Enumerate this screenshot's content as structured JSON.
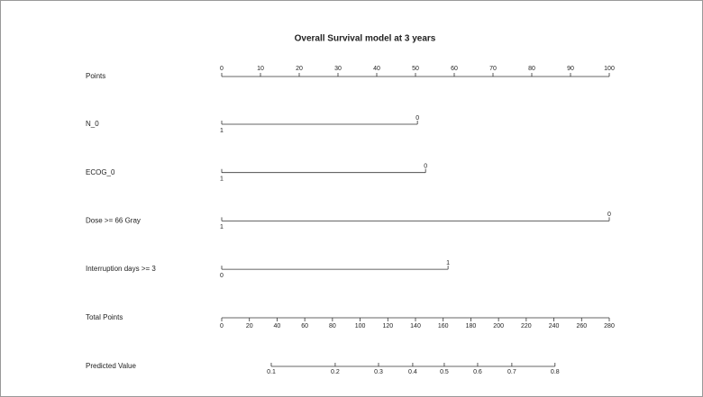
{
  "chart_data": {
    "type": "nomogram",
    "title": "Overall Survival model at 3 years",
    "points_scale": {
      "label": "Points",
      "xlim": [
        0,
        100
      ],
      "xticks": [
        0,
        10,
        20,
        30,
        40,
        50,
        60,
        70,
        80,
        90,
        100
      ]
    },
    "variables": [
      {
        "name": "N_0",
        "levels": [
          {
            "label": "1",
            "points": 0
          },
          {
            "label": "0",
            "points": 50.5
          }
        ]
      },
      {
        "name": "ECOG_0",
        "levels": [
          {
            "label": "1",
            "points": 0
          },
          {
            "label": "0",
            "points": 52.6
          }
        ]
      },
      {
        "name": "Dose >= 66 Gray",
        "levels": [
          {
            "label": "1",
            "points": 0
          },
          {
            "label": "0",
            "points": 100
          }
        ]
      },
      {
        "name": "Interruption days >= 3",
        "levels": [
          {
            "label": "0",
            "points": 0
          },
          {
            "label": "1",
            "points": 58.4
          }
        ]
      }
    ],
    "total_points_scale": {
      "label": "Total Points",
      "xlim": [
        0,
        280
      ],
      "xticks": [
        0,
        20,
        40,
        60,
        80,
        100,
        120,
        140,
        160,
        180,
        200,
        220,
        240,
        260,
        280
      ]
    },
    "predicted_scale": {
      "label": "Predicted Value",
      "ticks": [
        0.1,
        0.2,
        0.3,
        0.4,
        0.5,
        0.6,
        0.7,
        0.8
      ],
      "total_points": [
        35.8,
        82,
        113.3,
        138,
        160.8,
        184.9,
        209.6,
        240.8
      ]
    }
  }
}
